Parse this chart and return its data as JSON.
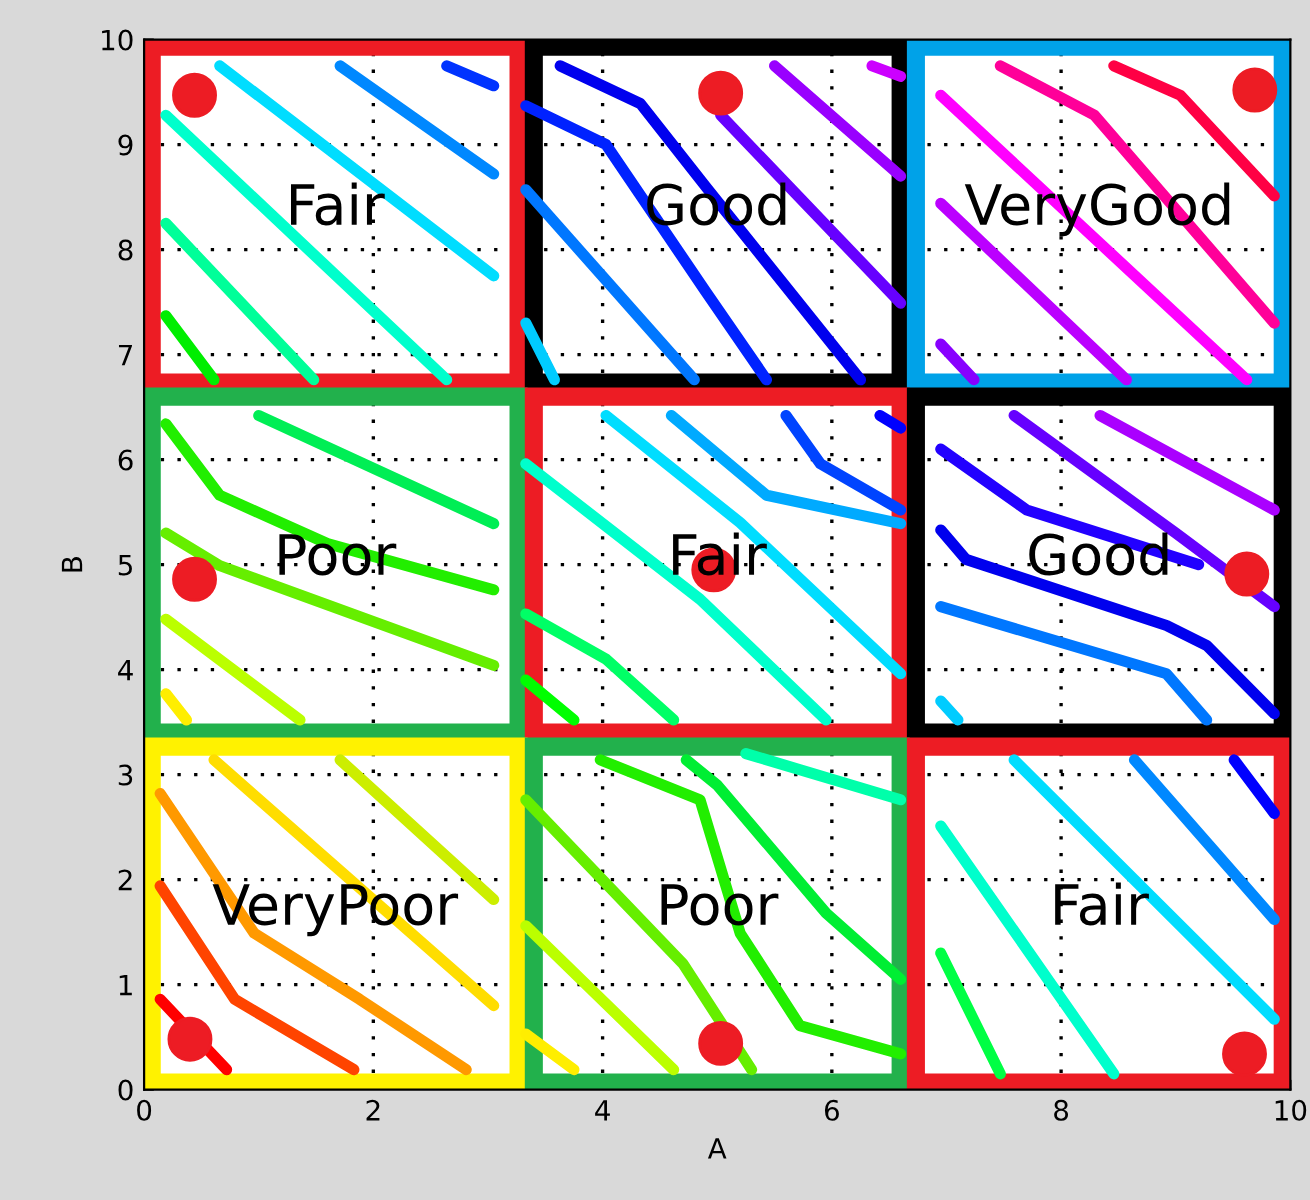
{
  "chart_data": {
    "type": "line",
    "xlabel": "A",
    "ylabel": "B",
    "xlim": [
      0,
      10
    ],
    "ylim": [
      0,
      10
    ],
    "xticks": [
      0,
      2,
      4,
      6,
      8,
      10
    ],
    "yticks": [
      0,
      1,
      2,
      3,
      4,
      5,
      6,
      7,
      8,
      9,
      10
    ],
    "grid": true,
    "marker": "none",
    "line_style": "solid",
    "series": [
      {
        "color": "#00ee00",
        "x": [
          0.19,
          0.61
        ],
        "values": [
          7.37,
          6.76
        ]
      },
      {
        "color": "#00ff99",
        "x": [
          0.19,
          1.48
        ],
        "values": [
          8.25,
          6.76
        ]
      },
      {
        "color": "#00ffcc",
        "x": [
          0.19,
          2.64
        ],
        "values": [
          9.28,
          6.76
        ]
      },
      {
        "color": "#00ddff",
        "x": [
          0.66,
          3.05
        ],
        "values": [
          9.75,
          7.75
        ]
      },
      {
        "color": "#0088ff",
        "x": [
          1.71,
          3.05
        ],
        "values": [
          9.75,
          8.72
        ]
      },
      {
        "color": "#0033ff",
        "x": [
          2.64,
          3.05
        ],
        "values": [
          9.75,
          9.56
        ]
      },
      {
        "color": "#00ccff",
        "x": [
          3.33,
          3.58
        ],
        "values": [
          7.3,
          6.76
        ]
      },
      {
        "color": "#0077ff",
        "x": [
          3.33,
          4.8
        ],
        "values": [
          8.57,
          6.76
        ]
      },
      {
        "color": "#0022ff",
        "x": [
          3.33,
          4.03,
          4.9,
          5.43
        ],
        "values": [
          9.37,
          9.0,
          7.6,
          6.76
        ]
      },
      {
        "color": "#0000ee",
        "x": [
          3.63,
          4.33,
          4.9,
          6.25
        ],
        "values": [
          9.75,
          9.39,
          8.6,
          6.76
        ]
      },
      {
        "color": "#6600ff",
        "x": [
          5.03,
          6.6
        ],
        "values": [
          9.28,
          7.49
        ]
      },
      {
        "color": "#9900ff",
        "x": [
          5.5,
          6.6
        ],
        "values": [
          9.75,
          8.7
        ]
      },
      {
        "color": "#cc00ff",
        "x": [
          6.35,
          6.6
        ],
        "values": [
          9.75,
          9.65
        ]
      },
      {
        "color": "#8800ff",
        "x": [
          6.95,
          7.24
        ],
        "values": [
          7.1,
          6.76
        ]
      },
      {
        "color": "#bb00ff",
        "x": [
          6.95,
          8.57
        ],
        "values": [
          8.44,
          6.76
        ]
      },
      {
        "color": "#ff00ff",
        "x": [
          6.95,
          9.62
        ],
        "values": [
          9.47,
          6.76
        ]
      },
      {
        "color": "#ff0099",
        "x": [
          7.47,
          8.29,
          9.86
        ],
        "values": [
          9.75,
          9.28,
          7.3
        ]
      },
      {
        "color": "#ff0044",
        "x": [
          8.46,
          9.04,
          9.86
        ],
        "values": [
          9.75,
          9.47,
          8.51
        ]
      },
      {
        "color": "#00ee55",
        "x": [
          1.0,
          3.05
        ],
        "values": [
          6.42,
          5.39
        ]
      },
      {
        "color": "#22ee00",
        "x": [
          0.19,
          0.66,
          1.6,
          3.05
        ],
        "values": [
          6.34,
          5.66,
          5.2,
          4.76
        ]
      },
      {
        "color": "#66ee00",
        "x": [
          0.19,
          0.66,
          3.05
        ],
        "values": [
          5.3,
          4.99,
          4.04
        ]
      },
      {
        "color": "#bbff00",
        "x": [
          0.19,
          1.36
        ],
        "values": [
          4.48,
          3.52
        ]
      },
      {
        "color": "#ffee00",
        "x": [
          0.19,
          0.37
        ],
        "values": [
          3.77,
          3.52
        ]
      },
      {
        "color": "#00ddff",
        "x": [
          4.03,
          5.2,
          6.6
        ],
        "values": [
          6.42,
          5.4,
          3.96
        ]
      },
      {
        "color": "#00aaff",
        "x": [
          4.6,
          5.43,
          6.6
        ],
        "values": [
          6.42,
          5.66,
          5.39
        ]
      },
      {
        "color": "#0044ff",
        "x": [
          5.6,
          5.9,
          6.6
        ],
        "values": [
          6.42,
          5.96,
          5.52
        ]
      },
      {
        "color": "#0000ff",
        "x": [
          6.42,
          6.6
        ],
        "values": [
          6.42,
          6.3
        ]
      },
      {
        "color": "#00ffcc",
        "x": [
          3.33,
          4.85,
          5.95
        ],
        "values": [
          5.96,
          4.67,
          3.52
        ]
      },
      {
        "color": "#00ff66",
        "x": [
          3.33,
          4.03,
          4.62
        ],
        "values": [
          4.53,
          4.1,
          3.52
        ]
      },
      {
        "color": "#00ff00",
        "x": [
          3.33,
          3.75
        ],
        "values": [
          3.9,
          3.52
        ]
      },
      {
        "color": "#aa00ff",
        "x": [
          8.34,
          9.86
        ],
        "values": [
          6.42,
          5.52
        ]
      },
      {
        "color": "#6600ff",
        "x": [
          7.59,
          9.0,
          9.86
        ],
        "values": [
          6.42,
          5.3,
          4.6
        ]
      },
      {
        "color": "#2200ff",
        "x": [
          6.95,
          7.7,
          9.2
        ],
        "values": [
          6.1,
          5.52,
          5.0
        ]
      },
      {
        "color": "#0000ee",
        "x": [
          6.95,
          7.17,
          8.92,
          9.27,
          9.86
        ],
        "values": [
          5.33,
          5.05,
          4.42,
          4.23,
          3.58
        ]
      },
      {
        "color": "#0077ff",
        "x": [
          6.95,
          8.92,
          9.27
        ],
        "values": [
          4.6,
          3.96,
          3.52
        ]
      },
      {
        "color": "#00ccff",
        "x": [
          6.95,
          7.1
        ],
        "values": [
          3.7,
          3.52
        ]
      },
      {
        "color": "#ccee00",
        "x": [
          1.71,
          3.05
        ],
        "values": [
          3.14,
          1.81
        ]
      },
      {
        "color": "#ffdd00",
        "x": [
          0.61,
          3.05
        ],
        "values": [
          3.14,
          0.8
        ]
      },
      {
        "color": "#ff9900",
        "x": [
          0.14,
          0.96,
          1.88,
          2.81
        ],
        "values": [
          2.82,
          1.49,
          0.86,
          0.19
        ]
      },
      {
        "color": "#ff4400",
        "x": [
          0.14,
          0.79,
          1.83
        ],
        "values": [
          1.94,
          0.86,
          0.19
        ]
      },
      {
        "color": "#ff0000",
        "x": [
          0.14,
          0.72
        ],
        "values": [
          0.86,
          0.19
        ]
      },
      {
        "color": "#ffee00",
        "x": [
          3.33,
          3.75
        ],
        "values": [
          0.53,
          0.19
        ]
      },
      {
        "color": "#bbff00",
        "x": [
          3.33,
          4.62
        ],
        "values": [
          1.56,
          0.19
        ]
      },
      {
        "color": "#66ee00",
        "x": [
          3.33,
          4.7,
          5.3
        ],
        "values": [
          2.76,
          1.2,
          0.19
        ]
      },
      {
        "color": "#22ee00",
        "x": [
          3.98,
          4.85,
          5.2,
          5.72,
          6.6
        ],
        "values": [
          3.14,
          2.76,
          1.49,
          0.61,
          0.34
        ]
      },
      {
        "color": "#00ee33",
        "x": [
          4.73,
          5.0,
          5.95,
          6.6
        ],
        "values": [
          3.14,
          2.9,
          1.68,
          1.05
        ]
      },
      {
        "color": "#00ffaa",
        "x": [
          5.25,
          6.6
        ],
        "values": [
          3.2,
          2.76
        ]
      },
      {
        "color": "#00ddff",
        "x": [
          7.59,
          9.86
        ],
        "values": [
          3.14,
          0.67
        ]
      },
      {
        "color": "#0088ff",
        "x": [
          8.64,
          9.86
        ],
        "values": [
          3.14,
          1.62
        ]
      },
      {
        "color": "#0000ff",
        "x": [
          9.51,
          9.86
        ],
        "values": [
          3.14,
          2.63
        ]
      },
      {
        "color": "#00ffcc",
        "x": [
          6.95,
          8.46
        ],
        "values": [
          2.51,
          0.15
        ]
      },
      {
        "color": "#00ff44",
        "x": [
          6.95,
          7.47
        ],
        "values": [
          1.3,
          0.15
        ]
      },
      {
        "type": "scatter",
        "color": "#ed1c24",
        "marker": "circle",
        "x": [
          0.44,
          5.03,
          9.69,
          0.44,
          4.97,
          9.62,
          0.4,
          5.03,
          9.6
        ],
        "values": [
          9.47,
          9.49,
          9.52,
          4.86,
          4.95,
          4.91,
          0.48,
          0.44,
          0.34
        ]
      }
    ],
    "annotations": [
      "Fair",
      "Good",
      "VeryGood",
      "Poor",
      "Fair",
      "Good",
      "VeryPoor",
      "Poor",
      "Fair"
    ]
  }
}
